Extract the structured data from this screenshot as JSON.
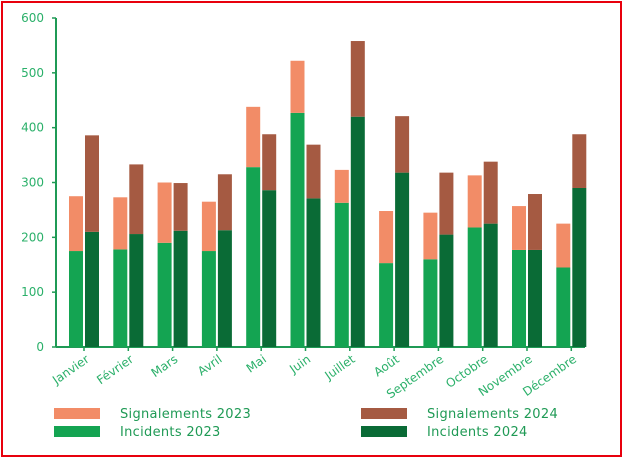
{
  "chart_data": {
    "type": "bar",
    "title": "",
    "xlabel": "",
    "ylabel": "",
    "ylim": [
      0,
      600
    ],
    "yticks": [
      0,
      100,
      200,
      300,
      400,
      500,
      600
    ],
    "ytick_labels": [
      "0",
      "100",
      "200",
      "300",
      "400",
      "500",
      "600"
    ],
    "categories": [
      "Janvier",
      "Février",
      "Mars",
      "Avril",
      "Mai",
      "Juin",
      "Juillet",
      "Août",
      "Septembre",
      "Octobre",
      "Novembre",
      "Décembre"
    ],
    "grid": false,
    "legend_position": "bottom",
    "series": [
      {
        "name": "Signalements 2023",
        "color": "#f28c67",
        "stack": "2023",
        "values": [
          100,
          95,
          110,
          90,
          110,
          95,
          60,
          95,
          85,
          95,
          80,
          80
        ]
      },
      {
        "name": "Incidents 2023",
        "color": "#14a452",
        "stack": "2023",
        "values": [
          175,
          178,
          190,
          175,
          328,
          427,
          263,
          153,
          160,
          218,
          177,
          145
        ]
      },
      {
        "name": "Signalements 2024",
        "color": "#a55a42",
        "stack": "2024",
        "values": [
          176,
          127,
          87,
          102,
          102,
          98,
          138,
          103,
          113,
          113,
          102,
          98
        ]
      },
      {
        "name": "Incidents 2024",
        "color": "#0a6b36",
        "stack": "2024",
        "values": [
          210,
          206,
          212,
          213,
          286,
          271,
          420,
          318,
          205,
          225,
          177,
          290
        ]
      }
    ],
    "legend": [
      {
        "label": "Signalements 2023",
        "color": "#f28c67"
      },
      {
        "label": "Signalements 2024",
        "color": "#a55a42"
      },
      {
        "label": "Incidents 2023",
        "color": "#14a452"
      },
      {
        "label": "Incidents 2024",
        "color": "#0a6b36"
      }
    ]
  }
}
